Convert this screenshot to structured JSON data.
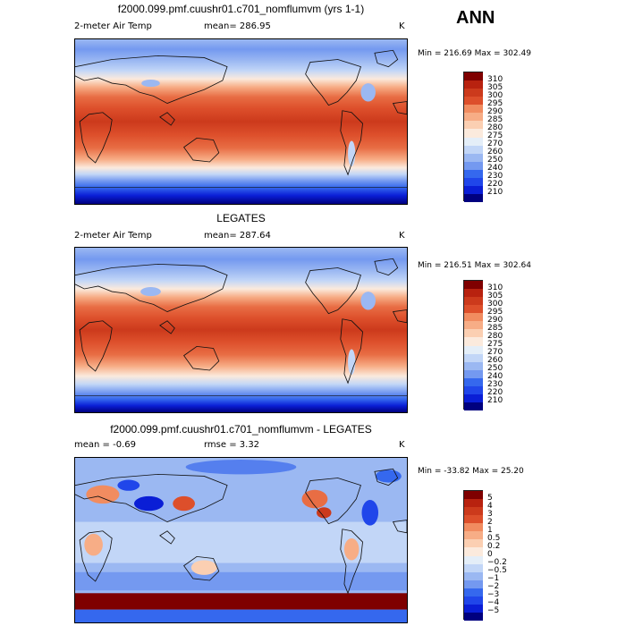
{
  "season": "ANN",
  "colors": {
    "abs_scale": [
      "#00007f",
      "#0a1ed6",
      "#2046ea",
      "#3568ee",
      "#557fee",
      "#7499f0",
      "#9bb8f2",
      "#c2d6f7",
      "#e4eef8",
      "#fbeadd",
      "#fbcfb2",
      "#f7ad86",
      "#f18c60",
      "#e86d44",
      "#dd4f2b",
      "#cc3a1c",
      "#b8220f",
      "#7f0000"
    ],
    "diff_scale": [
      "#00007f",
      "#0a1ed6",
      "#2046ea",
      "#3568ee",
      "#557fee",
      "#7499f0",
      "#9bb8f2",
      "#c2d6f7",
      "#e4eef8",
      "#fbeadd",
      "#fbcfb2",
      "#f7ad86",
      "#f18c60",
      "#e86d44",
      "#dd4f2b",
      "#cc3a1c",
      "#b8220f",
      "#7f0000"
    ]
  },
  "panels": [
    {
      "title": "f2000.099.pmf.cuushr01.c701_nomflumvm (yrs 1-1)",
      "variable": "2-meter Air Temp",
      "stat": "mean=  286.95",
      "units": "K",
      "minmax": "Min = 216.69  Max = 302.49",
      "ticks": [
        "310",
        "305",
        "300",
        "295",
        "290",
        "285",
        "280",
        "275",
        "270",
        "260",
        "250",
        "240",
        "230",
        "220",
        "210"
      ]
    },
    {
      "title": "LEGATES",
      "variable": "2-meter Air Temp",
      "stat": "mean=  287.64",
      "units": "K",
      "minmax": "Min = 216.51  Max = 302.64",
      "ticks": [
        "310",
        "305",
        "300",
        "295",
        "290",
        "285",
        "280",
        "275",
        "270",
        "260",
        "250",
        "240",
        "230",
        "220",
        "210"
      ]
    },
    {
      "title": "f2000.099.pmf.cuushr01.c701_nomflumvm - LEGATES",
      "variable": "mean =   -0.69",
      "stat": "rmse =    3.32",
      "units": "K",
      "minmax": "Min = -33.82  Max =  25.20",
      "ticks": [
        "5",
        "4",
        "3",
        "2",
        "1",
        "0.5",
        "0.2",
        "0",
        "−0.2",
        "−0.5",
        "−1",
        "−2",
        "−3",
        "−4",
        "−5"
      ]
    }
  ]
}
